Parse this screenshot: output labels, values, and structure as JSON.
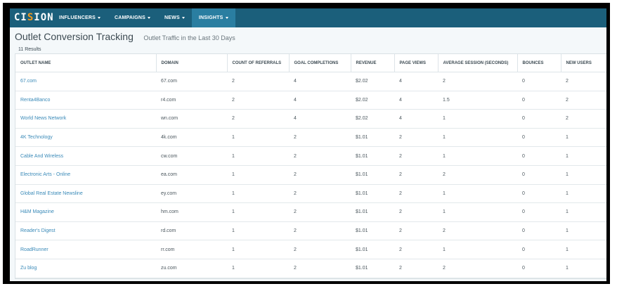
{
  "app": {
    "logo": {
      "text_before": "CI",
      "text_accent": "S",
      "text_after": "ION"
    }
  },
  "nav": {
    "items": [
      {
        "label": "INFLUENCERS",
        "active": false
      },
      {
        "label": "CAMPAIGNS",
        "active": false
      },
      {
        "label": "NEWS",
        "active": false
      },
      {
        "label": "INSIGHTS",
        "active": true
      }
    ]
  },
  "page": {
    "title": "Outlet Conversion Tracking",
    "subtitle": "Outlet Traffic in the Last 30 Days",
    "results_count": "11 Results"
  },
  "table": {
    "columns": [
      "OUTLET NAME",
      "DOMAIN",
      "COUNT OF REFERRALS",
      "GOAL COMPLETIONS",
      "REVENUE",
      "PAGE VIEWS",
      "AVERAGE SESSION (SECONDS)",
      "BOUNCES",
      "NEW USERS"
    ],
    "rows": [
      [
        "67.com",
        "67.com",
        "2",
        "4",
        "$2.02",
        "4",
        "2",
        "0",
        "2"
      ],
      [
        "Renta4Banco",
        "r4.com",
        "2",
        "4",
        "$2.02",
        "4",
        "1.5",
        "0",
        "2"
      ],
      [
        "World News Network",
        "wn.com",
        "2",
        "4",
        "$2.02",
        "4",
        "1",
        "0",
        "2"
      ],
      [
        "4K Technology",
        "4k.com",
        "1",
        "2",
        "$1.01",
        "2",
        "1",
        "0",
        "1"
      ],
      [
        "Cable And Wireless",
        "cw.com",
        "1",
        "2",
        "$1.01",
        "2",
        "1",
        "0",
        "1"
      ],
      [
        "Electronic Arts - Online",
        "ea.com",
        "1",
        "2",
        "$1.01",
        "2",
        "2",
        "0",
        "1"
      ],
      [
        "Global Real Estate Newsline",
        "ey.com",
        "1",
        "2",
        "$1.01",
        "2",
        "1",
        "0",
        "1"
      ],
      [
        "H&M Magazine",
        "hm.com",
        "1",
        "2",
        "$1.01",
        "2",
        "1",
        "0",
        "1"
      ],
      [
        "Reader's Digest",
        "rd.com",
        "1",
        "2",
        "$1.01",
        "2",
        "2",
        "0",
        "1"
      ],
      [
        "RoadRunner",
        "rr.com",
        "1",
        "2",
        "$1.01",
        "2",
        "1",
        "0",
        "1"
      ],
      [
        "Zu blog",
        "zu.com",
        "1",
        "2",
        "$1.01",
        "2",
        "2",
        "0",
        "1"
      ]
    ]
  },
  "colors": {
    "topbar": "#1b5f7b",
    "nav_active": "#2a7ea1",
    "logo_accent": "#f39a1e",
    "link": "#3a8ab8"
  }
}
